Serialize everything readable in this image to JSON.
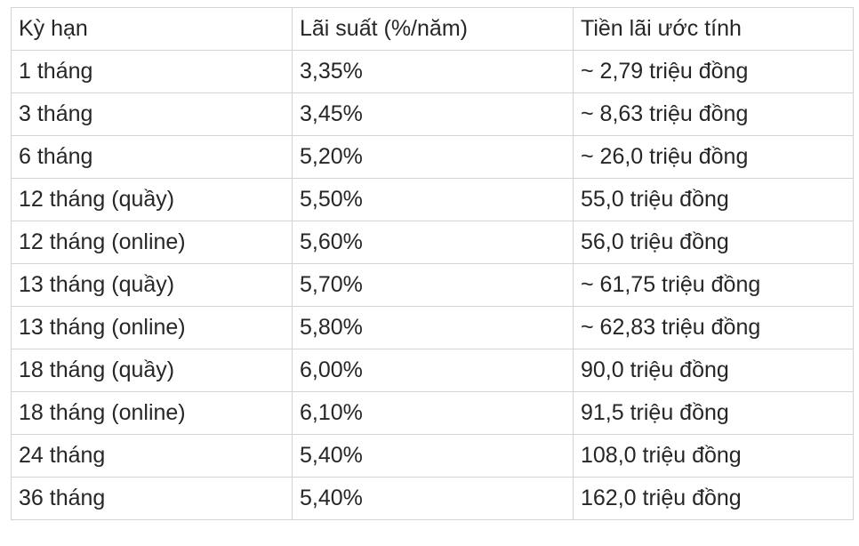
{
  "table": {
    "headers": [
      "Kỳ hạn",
      "Lãi suất (%/năm)",
      "Tiền lãi ước tính"
    ],
    "rows": [
      [
        "1 tháng",
        "3,35%",
        "~ 2,79 triệu đồng"
      ],
      [
        "3 tháng",
        "3,45%",
        "~ 8,63 triệu đồng"
      ],
      [
        "6 tháng",
        "5,20%",
        "~ 26,0 triệu đồng"
      ],
      [
        "12 tháng (quầy)",
        "5,50%",
        "55,0 triệu đồng"
      ],
      [
        "12 tháng (online)",
        "5,60%",
        "56,0 triệu đồng"
      ],
      [
        "13 tháng (quầy)",
        "5,70%",
        "~ 61,75 triệu đồng"
      ],
      [
        "13 tháng (online)",
        "5,80%",
        "~ 62,83 triệu đồng"
      ],
      [
        "18 tháng (quầy)",
        "6,00%",
        "90,0 triệu đồng"
      ],
      [
        "18 tháng (online)",
        "6,10%",
        "91,5 triệu đồng"
      ],
      [
        "24 tháng",
        "5,40%",
        "108,0 triệu đồng"
      ],
      [
        "36 tháng",
        "5,40%",
        "162,0 triệu đồng"
      ]
    ]
  }
}
